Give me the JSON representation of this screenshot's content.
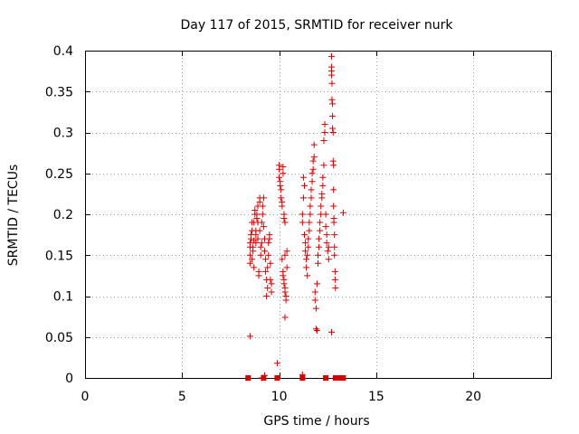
{
  "chart_data": {
    "type": "scatter",
    "title": "Day 117 of 2015, SRMTID for receiver nurk",
    "xlabel": "GPS time / hours",
    "ylabel": "SRMTID / TECUs",
    "xlim": [
      0,
      24
    ],
    "ylim": [
      0,
      0.4
    ],
    "xticks": [
      0,
      5,
      10,
      15,
      20
    ],
    "xtick_labels": [
      "0",
      "5",
      "10",
      "15",
      "20"
    ],
    "yticks": [
      0,
      0.05,
      0.1,
      0.15,
      0.2,
      0.25,
      0.3,
      0.35,
      0.4
    ],
    "ytick_labels": [
      "0",
      "0.05",
      "0.1",
      "0.15",
      "0.2",
      "0.25",
      "0.3",
      "0.35",
      "0.4"
    ],
    "grid": true,
    "marker_color": "#d40000",
    "series": [
      {
        "name": "SRMTID",
        "marker": "plus",
        "points": [
          [
            8.5,
            0.051
          ],
          [
            8.5,
            0.14
          ],
          [
            8.5,
            0.15
          ],
          [
            8.5,
            0.16
          ],
          [
            8.5,
            0.165
          ],
          [
            8.55,
            0.17
          ],
          [
            8.55,
            0.175
          ],
          [
            8.6,
            0.18
          ],
          [
            8.6,
            0.19
          ],
          [
            8.6,
            0.145
          ],
          [
            8.65,
            0.155
          ],
          [
            8.65,
            0.16
          ],
          [
            8.7,
            0.135
          ],
          [
            8.7,
            0.168
          ],
          [
            8.7,
            0.19
          ],
          [
            8.75,
            0.2
          ],
          [
            8.75,
            0.205
          ],
          [
            8.8,
            0.18
          ],
          [
            8.8,
            0.175
          ],
          [
            8.8,
            0.165
          ],
          [
            8.85,
            0.195
          ],
          [
            8.85,
            0.2
          ],
          [
            8.9,
            0.21
          ],
          [
            8.9,
            0.19
          ],
          [
            8.9,
            0.17
          ],
          [
            8.95,
            0.13
          ],
          [
            8.95,
            0.125
          ],
          [
            9.0,
            0.22
          ],
          [
            9.0,
            0.215
          ],
          [
            9.0,
            0.18
          ],
          [
            9.05,
            0.16
          ],
          [
            9.05,
            0.15
          ],
          [
            9.1,
            0.165
          ],
          [
            9.1,
            0.19
          ],
          [
            9.15,
            0.2
          ],
          [
            9.15,
            0.21
          ],
          [
            9.2,
            0.22
          ],
          [
            9.2,
            0.185
          ],
          [
            9.25,
            0.17
          ],
          [
            9.25,
            0.155
          ],
          [
            9.3,
            0.145
          ],
          [
            9.3,
            0.13
          ],
          [
            9.35,
            0.12
          ],
          [
            9.35,
            0.1
          ],
          [
            9.4,
            0.11
          ],
          [
            9.4,
            0.135
          ],
          [
            9.45,
            0.15
          ],
          [
            9.45,
            0.165
          ],
          [
            9.5,
            0.17
          ],
          [
            9.5,
            0.175
          ],
          [
            9.55,
            0.14
          ],
          [
            9.55,
            0.12
          ],
          [
            9.6,
            0.115
          ],
          [
            9.6,
            0.105
          ],
          [
            9.1,
            0.0
          ],
          [
            9.25,
            0.003
          ],
          [
            9.9,
            0.018
          ],
          [
            10.0,
            0.26
          ],
          [
            10.0,
            0.255
          ],
          [
            10.0,
            0.245
          ],
          [
            10.05,
            0.24
          ],
          [
            10.05,
            0.235
          ],
          [
            10.1,
            0.23
          ],
          [
            10.1,
            0.22
          ],
          [
            10.15,
            0.215
          ],
          [
            10.15,
            0.21
          ],
          [
            10.2,
            0.25
          ],
          [
            10.2,
            0.258
          ],
          [
            10.25,
            0.2
          ],
          [
            10.25,
            0.195
          ],
          [
            10.3,
            0.19
          ],
          [
            10.3,
            0.15
          ],
          [
            10.15,
            0.145
          ],
          [
            10.2,
            0.13
          ],
          [
            10.2,
            0.125
          ],
          [
            10.25,
            0.12
          ],
          [
            10.25,
            0.115
          ],
          [
            10.3,
            0.11
          ],
          [
            10.3,
            0.105
          ],
          [
            10.35,
            0.1
          ],
          [
            10.35,
            0.095
          ],
          [
            10.4,
            0.135
          ],
          [
            10.4,
            0.155
          ],
          [
            10.3,
            0.074
          ],
          [
            11.2,
            0.2
          ],
          [
            11.2,
            0.19
          ],
          [
            11.25,
            0.22
          ],
          [
            11.25,
            0.245
          ],
          [
            11.3,
            0.235
          ],
          [
            11.3,
            0.175
          ],
          [
            11.35,
            0.165
          ],
          [
            11.35,
            0.155
          ],
          [
            11.4,
            0.145
          ],
          [
            11.4,
            0.135
          ],
          [
            11.45,
            0.125
          ],
          [
            11.45,
            0.15
          ],
          [
            11.5,
            0.16
          ],
          [
            11.5,
            0.17
          ],
          [
            11.55,
            0.18
          ],
          [
            11.55,
            0.19
          ],
          [
            11.6,
            0.2
          ],
          [
            11.6,
            0.21
          ],
          [
            11.65,
            0.22
          ],
          [
            11.65,
            0.23
          ],
          [
            11.7,
            0.24
          ],
          [
            11.7,
            0.25
          ],
          [
            11.75,
            0.255
          ],
          [
            11.75,
            0.265
          ],
          [
            11.8,
            0.27
          ],
          [
            11.8,
            0.285
          ],
          [
            11.85,
            0.105
          ],
          [
            11.85,
            0.095
          ],
          [
            11.9,
            0.085
          ],
          [
            11.9,
            0.06
          ],
          [
            11.95,
            0.058
          ],
          [
            11.95,
            0.115
          ],
          [
            12.0,
            0.14
          ],
          [
            12.0,
            0.15
          ],
          [
            12.05,
            0.16
          ],
          [
            12.05,
            0.17
          ],
          [
            12.1,
            0.18
          ],
          [
            12.1,
            0.19
          ],
          [
            12.15,
            0.2
          ],
          [
            12.15,
            0.21
          ],
          [
            12.2,
            0.22
          ],
          [
            12.2,
            0.225
          ],
          [
            12.25,
            0.235
          ],
          [
            12.25,
            0.245
          ],
          [
            12.3,
            0.26
          ],
          [
            12.3,
            0.29
          ],
          [
            12.35,
            0.3
          ],
          [
            12.35,
            0.31
          ],
          [
            12.4,
            0.2
          ],
          [
            12.4,
            0.185
          ],
          [
            12.45,
            0.175
          ],
          [
            12.45,
            0.165
          ],
          [
            12.5,
            0.155
          ],
          [
            12.55,
            0.145
          ],
          [
            12.55,
            0.16
          ],
          [
            11.2,
            0.004
          ],
          [
            12.7,
            0.393
          ],
          [
            12.7,
            0.38
          ],
          [
            12.7,
            0.375
          ],
          [
            12.7,
            0.37
          ],
          [
            12.72,
            0.36
          ],
          [
            12.72,
            0.34
          ],
          [
            12.75,
            0.335
          ],
          [
            12.75,
            0.32
          ],
          [
            12.75,
            0.305
          ],
          [
            12.78,
            0.3
          ],
          [
            12.78,
            0.265
          ],
          [
            12.8,
            0.26
          ],
          [
            12.8,
            0.23
          ],
          [
            12.8,
            0.21
          ],
          [
            12.82,
            0.195
          ],
          [
            12.82,
            0.19
          ],
          [
            12.85,
            0.175
          ],
          [
            12.85,
            0.16
          ],
          [
            12.85,
            0.15
          ],
          [
            12.88,
            0.13
          ],
          [
            12.88,
            0.12
          ],
          [
            12.9,
            0.11
          ],
          [
            12.7,
            0.056
          ],
          [
            13.3,
            0.202
          ]
        ]
      },
      {
        "name": "zero values",
        "marker": "square",
        "points": [
          [
            8.4,
            0.0
          ],
          [
            9.2,
            0.0
          ],
          [
            9.9,
            0.0
          ],
          [
            11.2,
            0.0
          ],
          [
            12.4,
            0.0
          ],
          [
            12.9,
            0.0
          ],
          [
            13.1,
            0.0
          ],
          [
            13.3,
            0.0
          ]
        ]
      }
    ]
  }
}
